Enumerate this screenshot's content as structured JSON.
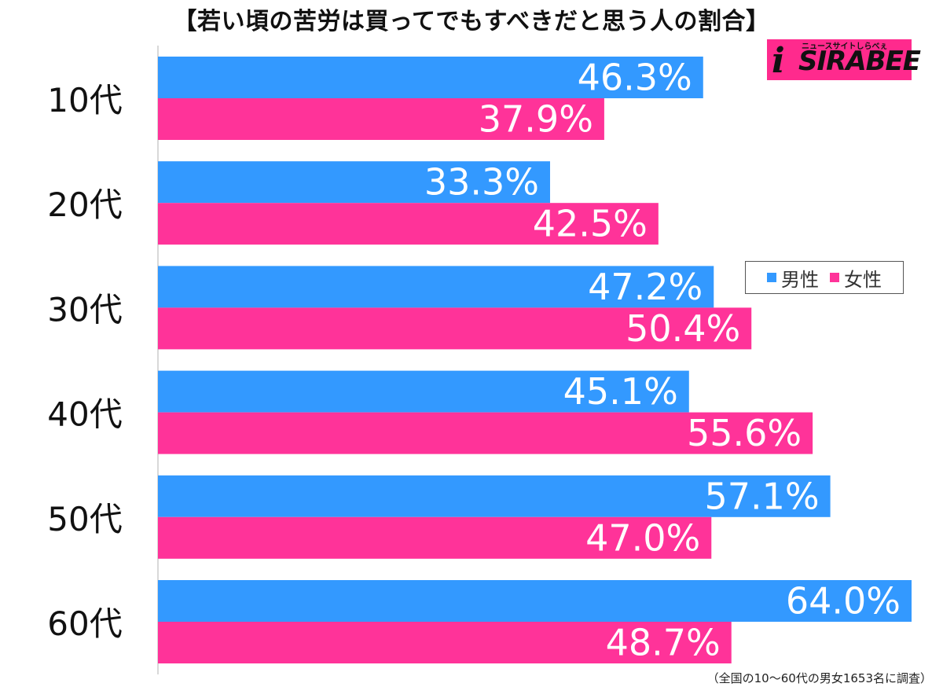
{
  "chart_data": {
    "type": "bar",
    "orientation": "horizontal",
    "title": "【若い頃の苦労は買ってでもすべきだと思う人の割合】",
    "categories": [
      "10代",
      "20代",
      "30代",
      "40代",
      "50代",
      "60代"
    ],
    "series": [
      {
        "name": "男性",
        "values": [
          46.3,
          33.3,
          47.2,
          45.1,
          57.1,
          64.0
        ],
        "labels": [
          "46.3%",
          "33.3%",
          "47.2%",
          "45.1%",
          "57.1%",
          "64.0%"
        ]
      },
      {
        "name": "女性",
        "values": [
          37.9,
          42.5,
          50.4,
          55.6,
          47.0,
          48.7
        ],
        "labels": [
          "37.9%",
          "42.5%",
          "50.4%",
          "55.6%",
          "47.0%",
          "48.7%"
        ]
      }
    ],
    "xlim": [
      0,
      64
    ],
    "legend_position": "right",
    "grid": false
  },
  "colors": {
    "male": "#3399ff",
    "female": "#ff3399",
    "axis": "#cccccc"
  },
  "legend": {
    "male": "男性",
    "female": "女性"
  },
  "footnote": "（全国の10〜60代の男女1653名に調査）",
  "logo": {
    "main": "SIRABEE",
    "sub": "ニュースサイトしらべぇ",
    "initial": "i"
  }
}
